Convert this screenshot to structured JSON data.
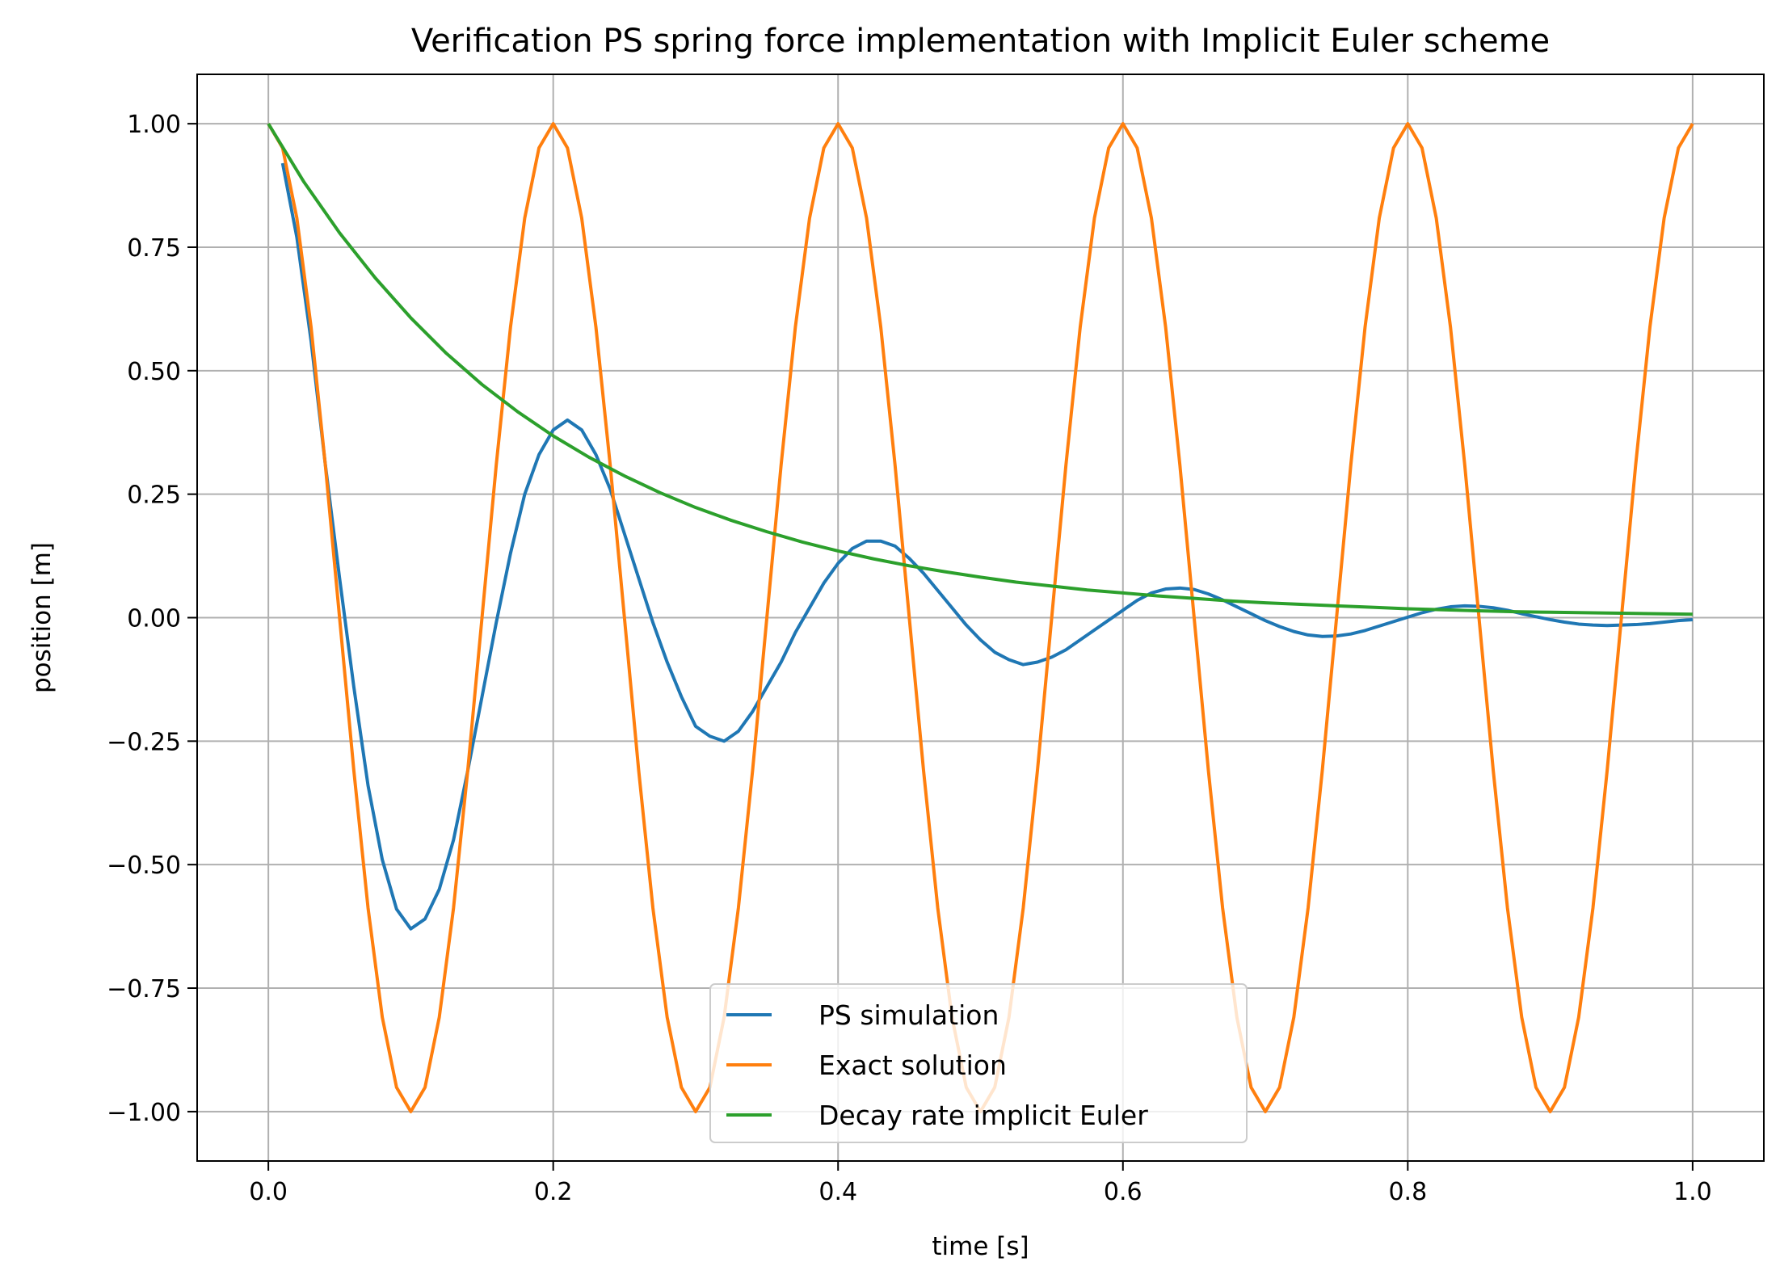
{
  "chart_data": {
    "type": "line",
    "title": "Verification PS spring force implementation with Implicit Euler scheme",
    "xlabel": "time [s]",
    "ylabel": "position [m]",
    "xlim": [
      -0.05,
      1.05
    ],
    "ylim": [
      -1.1,
      1.1
    ],
    "xticks": [
      0.0,
      0.2,
      0.4,
      0.6,
      0.8,
      1.0
    ],
    "xtick_labels": [
      "0.0",
      "0.2",
      "0.4",
      "0.6",
      "0.8",
      "1.0"
    ],
    "yticks": [
      1.0,
      0.75,
      0.5,
      0.25,
      0.0,
      -0.25,
      -0.5,
      -0.75,
      -1.0
    ],
    "ytick_labels": [
      "1.00",
      "0.75",
      "0.50",
      "0.25",
      "0.00",
      "−0.25",
      "−0.50",
      "−0.75",
      "−1.00"
    ],
    "grid": true,
    "legend_position": "lower-center",
    "series": [
      {
        "name": "PS simulation",
        "color": "#1f77b4",
        "x": [
          0.01,
          0.02,
          0.03,
          0.04,
          0.05,
          0.06,
          0.07,
          0.08,
          0.09,
          0.1,
          0.11,
          0.12,
          0.13,
          0.14,
          0.15,
          0.16,
          0.17,
          0.18,
          0.19,
          0.2,
          0.21,
          0.22,
          0.23,
          0.24,
          0.25,
          0.26,
          0.27,
          0.28,
          0.29,
          0.3,
          0.31,
          0.32,
          0.33,
          0.34,
          0.35,
          0.36,
          0.37,
          0.38,
          0.39,
          0.4,
          0.41,
          0.42,
          0.43,
          0.44,
          0.45,
          0.46,
          0.47,
          0.48,
          0.49,
          0.5,
          0.51,
          0.52,
          0.53,
          0.54,
          0.55,
          0.56,
          0.57,
          0.58,
          0.59,
          0.6,
          0.61,
          0.62,
          0.63,
          0.64,
          0.65,
          0.66,
          0.67,
          0.68,
          0.69,
          0.7,
          0.71,
          0.72,
          0.73,
          0.74,
          0.75,
          0.76,
          0.77,
          0.78,
          0.79,
          0.8,
          0.81,
          0.82,
          0.83,
          0.84,
          0.85,
          0.86,
          0.87,
          0.88,
          0.89,
          0.9,
          0.91,
          0.92,
          0.93,
          0.94,
          0.95,
          0.96,
          0.97,
          0.98,
          0.99,
          1.0
        ],
        "y": [
          0.92,
          0.77,
          0.56,
          0.31,
          0.08,
          -0.14,
          -0.34,
          -0.49,
          -0.59,
          -0.63,
          -0.61,
          -0.55,
          -0.45,
          -0.31,
          -0.16,
          -0.01,
          0.13,
          0.25,
          0.33,
          0.38,
          0.4,
          0.38,
          0.33,
          0.26,
          0.17,
          0.08,
          -0.01,
          -0.09,
          -0.16,
          -0.22,
          -0.24,
          -0.25,
          -0.23,
          -0.19,
          -0.14,
          -0.09,
          -0.03,
          0.02,
          0.07,
          0.11,
          0.14,
          0.155,
          0.155,
          0.145,
          0.12,
          0.09,
          0.055,
          0.02,
          -0.015,
          -0.045,
          -0.07,
          -0.085,
          -0.095,
          -0.09,
          -0.08,
          -0.065,
          -0.045,
          -0.025,
          -0.005,
          0.015,
          0.035,
          0.05,
          0.058,
          0.06,
          0.057,
          0.048,
          0.036,
          0.022,
          0.008,
          -0.006,
          -0.018,
          -0.028,
          -0.035,
          -0.038,
          -0.037,
          -0.033,
          -0.026,
          -0.017,
          -0.008,
          0.001,
          0.01,
          0.017,
          0.022,
          0.024,
          0.023,
          0.02,
          0.015,
          0.008,
          0.002,
          -0.004,
          -0.009,
          -0.013,
          -0.015,
          -0.016,
          -0.015,
          -0.014,
          -0.012,
          -0.009,
          -0.006,
          -0.004
        ]
      },
      {
        "name": "Exact solution",
        "color": "#ff7f0e",
        "x": [
          0.0,
          0.01,
          0.02,
          0.03,
          0.04,
          0.05,
          0.06,
          0.07,
          0.08,
          0.09,
          0.1,
          0.11,
          0.12,
          0.13,
          0.14,
          0.15,
          0.16,
          0.17,
          0.18,
          0.19,
          0.2,
          0.21,
          0.22,
          0.23,
          0.24,
          0.25,
          0.26,
          0.27,
          0.28,
          0.29,
          0.3,
          0.31,
          0.32,
          0.33,
          0.34,
          0.35,
          0.36,
          0.37,
          0.38,
          0.39,
          0.4,
          0.41,
          0.42,
          0.43,
          0.44,
          0.45,
          0.46,
          0.47,
          0.48,
          0.49,
          0.5,
          0.51,
          0.52,
          0.53,
          0.54,
          0.55,
          0.56,
          0.57,
          0.58,
          0.59,
          0.6,
          0.61,
          0.62,
          0.63,
          0.64,
          0.65,
          0.66,
          0.67,
          0.68,
          0.69,
          0.7,
          0.71,
          0.72,
          0.73,
          0.74,
          0.75,
          0.76,
          0.77,
          0.78,
          0.79,
          0.8,
          0.81,
          0.82,
          0.83,
          0.84,
          0.85,
          0.86,
          0.87,
          0.88,
          0.89,
          0.9,
          0.91,
          0.92,
          0.93,
          0.94,
          0.95,
          0.96,
          0.97,
          0.98,
          0.99,
          1.0
        ],
        "y": [
          1.0,
          0.951,
          0.809,
          0.588,
          0.309,
          0.0,
          -0.309,
          -0.588,
          -0.809,
          -0.951,
          -1.0,
          -0.951,
          -0.809,
          -0.588,
          -0.309,
          0.0,
          0.309,
          0.588,
          0.809,
          0.951,
          1.0,
          0.951,
          0.809,
          0.588,
          0.309,
          0.0,
          -0.309,
          -0.588,
          -0.809,
          -0.951,
          -1.0,
          -0.951,
          -0.809,
          -0.588,
          -0.309,
          0.0,
          0.309,
          0.588,
          0.809,
          0.951,
          1.0,
          0.951,
          0.809,
          0.588,
          0.309,
          0.0,
          -0.309,
          -0.588,
          -0.809,
          -0.951,
          -1.0,
          -0.951,
          -0.809,
          -0.588,
          -0.309,
          0.0,
          0.309,
          0.588,
          0.809,
          0.951,
          1.0,
          0.951,
          0.809,
          0.588,
          0.309,
          0.0,
          -0.309,
          -0.588,
          -0.809,
          -0.951,
          -1.0,
          -0.951,
          -0.809,
          -0.588,
          -0.309,
          0.0,
          0.309,
          0.588,
          0.809,
          0.951,
          1.0,
          0.951,
          0.809,
          0.588,
          0.309,
          0.0,
          -0.309,
          -0.588,
          -0.809,
          -0.951,
          -1.0,
          -0.951,
          -0.809,
          -0.588,
          -0.309,
          0.0,
          0.309,
          0.588,
          0.809,
          0.951,
          1.0
        ]
      },
      {
        "name": "Decay rate implicit Euler",
        "color": "#2ca02c",
        "x": [
          0.0,
          0.025,
          0.05,
          0.075,
          0.1,
          0.125,
          0.15,
          0.175,
          0.2,
          0.225,
          0.25,
          0.275,
          0.3,
          0.325,
          0.35,
          0.375,
          0.4,
          0.425,
          0.45,
          0.475,
          0.5,
          0.525,
          0.55,
          0.575,
          0.6,
          0.625,
          0.65,
          0.675,
          0.7,
          0.725,
          0.75,
          0.775,
          0.8,
          0.825,
          0.85,
          0.875,
          0.9,
          0.925,
          0.95,
          0.975,
          1.0
        ],
        "y": [
          1.0,
          0.882,
          0.779,
          0.688,
          0.607,
          0.535,
          0.472,
          0.417,
          0.368,
          0.325,
          0.287,
          0.253,
          0.223,
          0.197,
          0.174,
          0.153,
          0.135,
          0.119,
          0.105,
          0.093,
          0.082,
          0.072,
          0.064,
          0.056,
          0.05,
          0.044,
          0.039,
          0.034,
          0.03,
          0.027,
          0.024,
          0.021,
          0.018,
          0.016,
          0.014,
          0.012,
          0.011,
          0.01,
          0.009,
          0.008,
          0.007
        ]
      }
    ]
  }
}
